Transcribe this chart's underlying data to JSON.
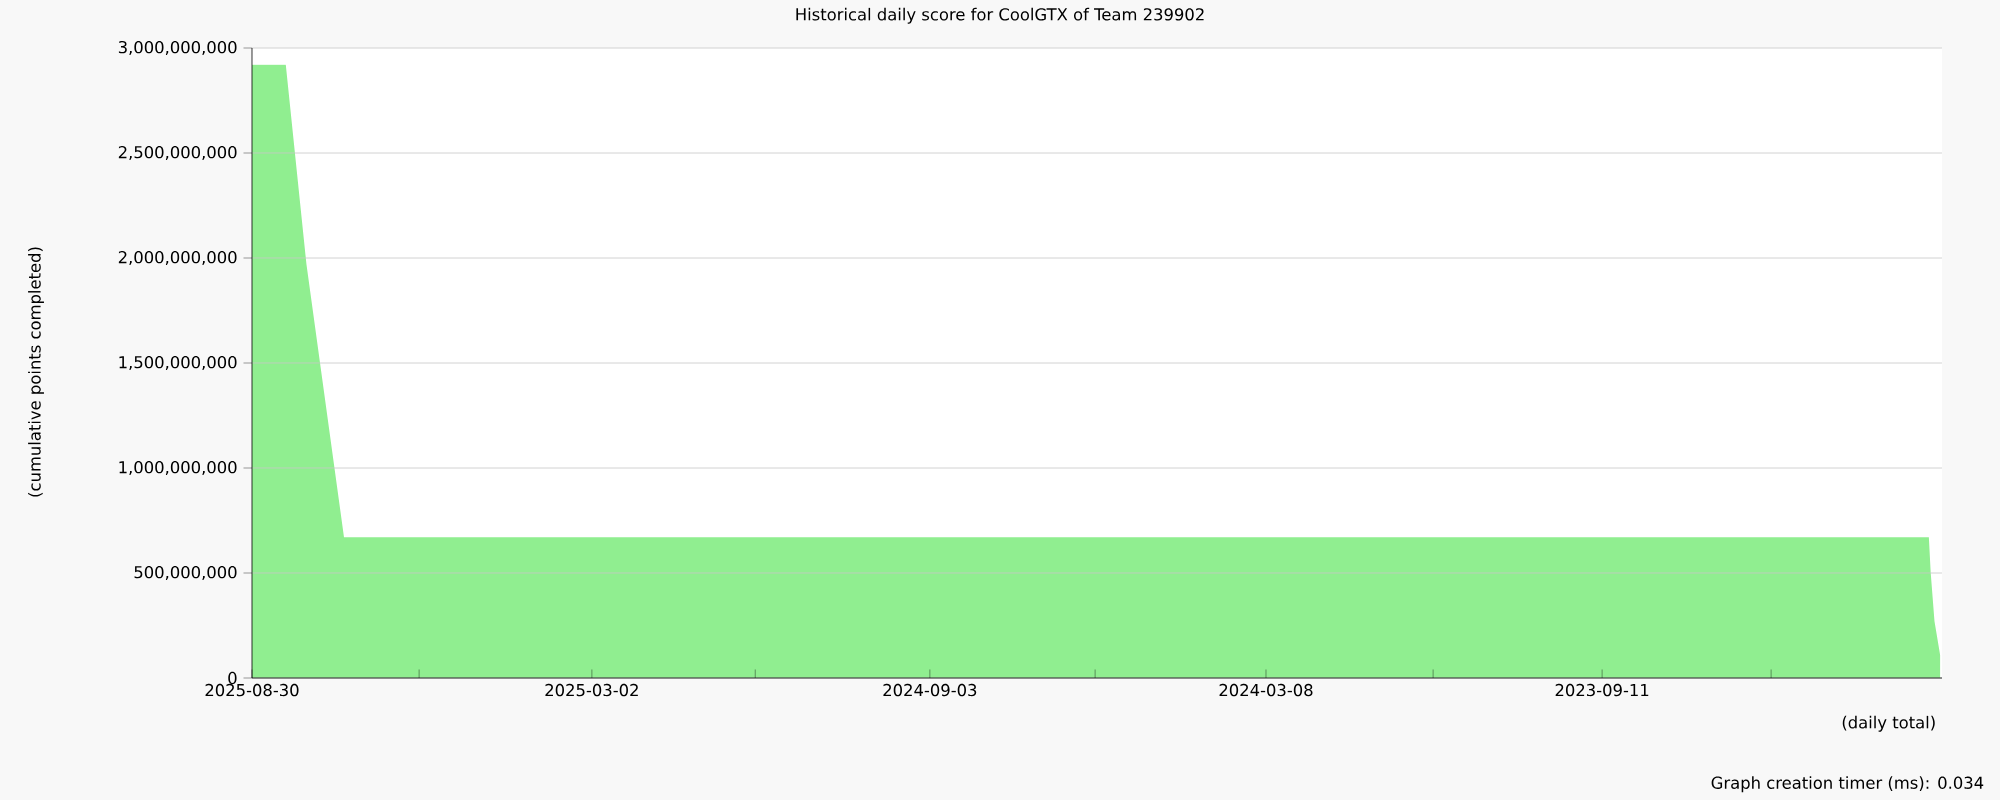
{
  "chart_data": {
    "type": "area",
    "title": "Historical daily score for CoolGTX of Team 239902",
    "ylabel": "(cumulative points completed)",
    "xlabel": "(daily total)",
    "annotations": [
      "Graph creation timer (ms): 0.034"
    ],
    "x": [
      "2025-08-30",
      "2025-08-12",
      "2025-08-01",
      "2025-07-12",
      "2023-03-21",
      "2023-03-20",
      "2023-03-18",
      "2023-03-15"
    ],
    "values": [
      2920000000,
      2920000000,
      1970000000,
      670000000,
      670000000,
      500000000,
      270000000,
      110000000
    ],
    "color": "#90ee90",
    "xlim": [
      "2025-08-30",
      "2023-03-14"
    ],
    "xticks": [
      "2025-08-30",
      {
        "value": "2025-06-02",
        "label": null
      },
      "2025-03-02",
      {
        "value": "2024-12-05",
        "label": null
      },
      "2024-09-03",
      {
        "value": "2024-06-07",
        "label": null
      },
      "2024-03-08",
      {
        "value": "2023-12-10",
        "label": null
      },
      "2023-09-11",
      {
        "value": "2023-06-13",
        "label": null
      }
    ],
    "ylim": [
      0,
      3000000000
    ],
    "yticks": [
      {
        "value": 0,
        "label": "0"
      },
      {
        "value": 500000000,
        "label": "500,000,000"
      },
      {
        "value": 1000000000,
        "label": "1,000,000,000"
      },
      {
        "value": 1500000000,
        "label": "1,500,000,000"
      },
      {
        "value": 2000000000,
        "label": "2,000,000,000"
      },
      {
        "value": 2500000000,
        "label": "2,500,000,000"
      },
      {
        "value": 3000000000,
        "label": "3,000,000,000"
      }
    ],
    "grid": "y"
  }
}
